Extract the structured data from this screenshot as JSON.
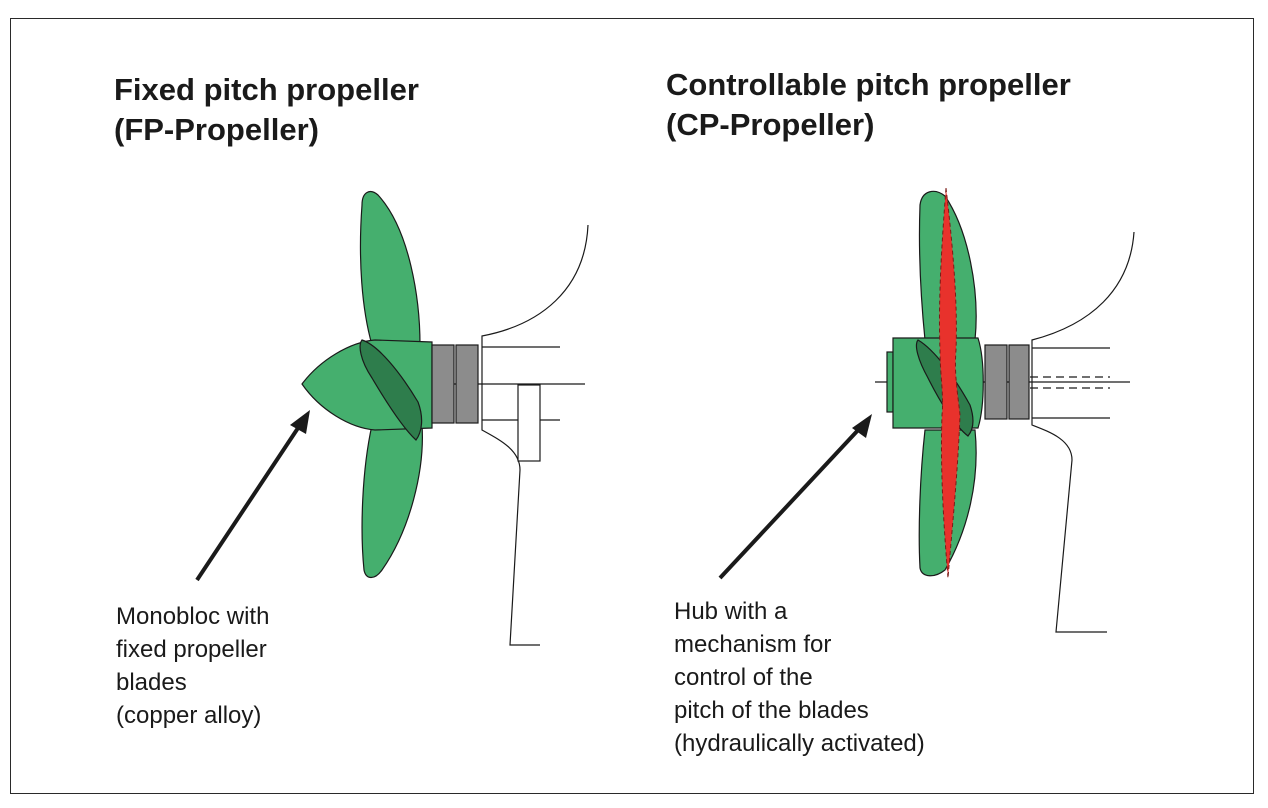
{
  "fp": {
    "title_line1": "Fixed pitch propeller",
    "title_line2": "(FP-Propeller)",
    "caption_lines": [
      "Monobloc with",
      "fixed propeller",
      "blades",
      "(copper alloy)"
    ]
  },
  "cp": {
    "title_line1": "Controllable pitch propeller",
    "title_line2": "(CP-Propeller)",
    "caption_lines": [
      "Hub with a",
      "mechanism for",
      "control of the",
      "pitch of the blades",
      "(hydraulically activated)"
    ]
  },
  "colors": {
    "blade_green": "#45AF6E",
    "blade_dark_green": "#2E7D4C",
    "shaft_gray": "#8C8C8C",
    "pitch_red": "#E8322C",
    "outline": "#1a1a1a"
  }
}
